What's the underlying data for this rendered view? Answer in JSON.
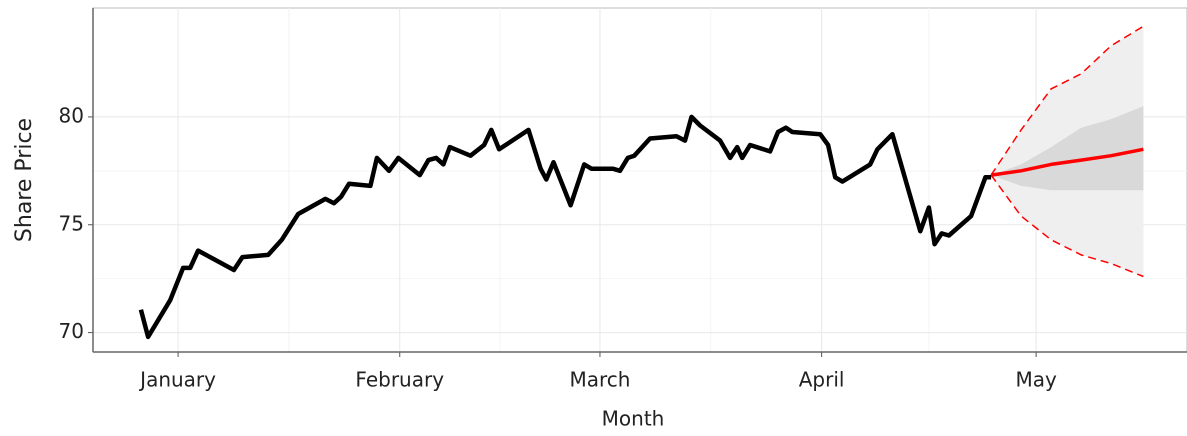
{
  "chart_data": {
    "type": "line",
    "x_label": "Month",
    "y_label": "Share Price",
    "xlim": [
      -11.9,
      141.1
    ],
    "ylim": [
      69.1,
      85.05
    ],
    "xticks": [
      {
        "value": 0,
        "label": "January"
      },
      {
        "value": 31,
        "label": "February"
      },
      {
        "value": 59,
        "label": "March"
      },
      {
        "value": 90,
        "label": "April"
      },
      {
        "value": 120,
        "label": "May"
      }
    ],
    "yticks": [
      70,
      75,
      80
    ],
    "grid": true,
    "series": [
      {
        "color": "#000000",
        "x": [
          -5.2,
          -4.2,
          -1.1,
          0.7,
          1.7,
          2.8,
          7.8,
          9.0,
          12.6,
          14.5,
          16.8,
          20.6,
          21.8,
          22.8,
          23.9,
          26.9,
          27.8,
          29.5,
          30.8,
          33.8,
          35.0,
          36.1,
          37.1,
          38.0,
          40.9,
          42.8,
          43.8,
          44.9,
          49.0,
          50.7,
          51.5,
          52.5,
          54.9,
          56.8,
          57.8,
          60.8,
          61.8,
          62.9,
          63.8,
          66.0,
          69.7,
          70.9,
          71.8,
          73.0,
          75.8,
          77.2,
          78.2,
          78.9,
          80.0,
          82.8,
          83.9,
          85.0,
          85.9,
          89.8,
          90.9,
          91.9,
          92.9,
          96.8,
          97.8,
          99.9,
          103.8,
          105.0,
          105.8,
          106.8,
          107.8,
          110.9,
          112.9,
          113.7
        ],
        "values": [
          71.06,
          69.8,
          71.5,
          73.0,
          73.0,
          73.8,
          72.9,
          73.5,
          73.6,
          74.3,
          75.5,
          76.2,
          76.0,
          76.3,
          76.9,
          76.8,
          78.1,
          77.5,
          78.1,
          77.3,
          78.0,
          78.1,
          77.8,
          78.6,
          78.2,
          78.7,
          79.4,
          78.5,
          79.4,
          77.6,
          77.1,
          77.9,
          75.9,
          77.8,
          77.6,
          77.6,
          77.5,
          78.1,
          78.2,
          79.0,
          79.1,
          78.9,
          80.0,
          79.6,
          78.9,
          78.1,
          78.6,
          78.1,
          78.7,
          78.4,
          79.3,
          79.5,
          79.3,
          79.2,
          78.7,
          77.2,
          77.0,
          77.8,
          78.5,
          79.2,
          74.7,
          75.8,
          74.1,
          74.6,
          74.5,
          75.4,
          77.2,
          77.2
        ]
      },
      {
        "color": "#ff0000",
        "x": [
          113.7,
          117.9,
          122.1,
          126.3,
          130.5,
          135.0
        ],
        "values": [
          77.3,
          77.5,
          77.8,
          78.0,
          78.2,
          78.5
        ]
      }
    ],
    "bands": [
      {
        "color": "#efefef",
        "edge_color": "#ff0000",
        "lower": [
          77.3,
          75.4,
          74.3,
          73.6,
          73.2,
          72.6
        ],
        "upper": [
          77.3,
          79.4,
          81.3,
          82.0,
          83.3,
          84.2
        ]
      },
      {
        "color": "#d9d9d9",
        "lower": [
          77.3,
          76.8,
          76.6,
          76.6,
          76.6,
          76.6
        ],
        "upper": [
          77.3,
          77.8,
          78.6,
          79.5,
          79.9,
          80.5
        ]
      }
    ]
  }
}
